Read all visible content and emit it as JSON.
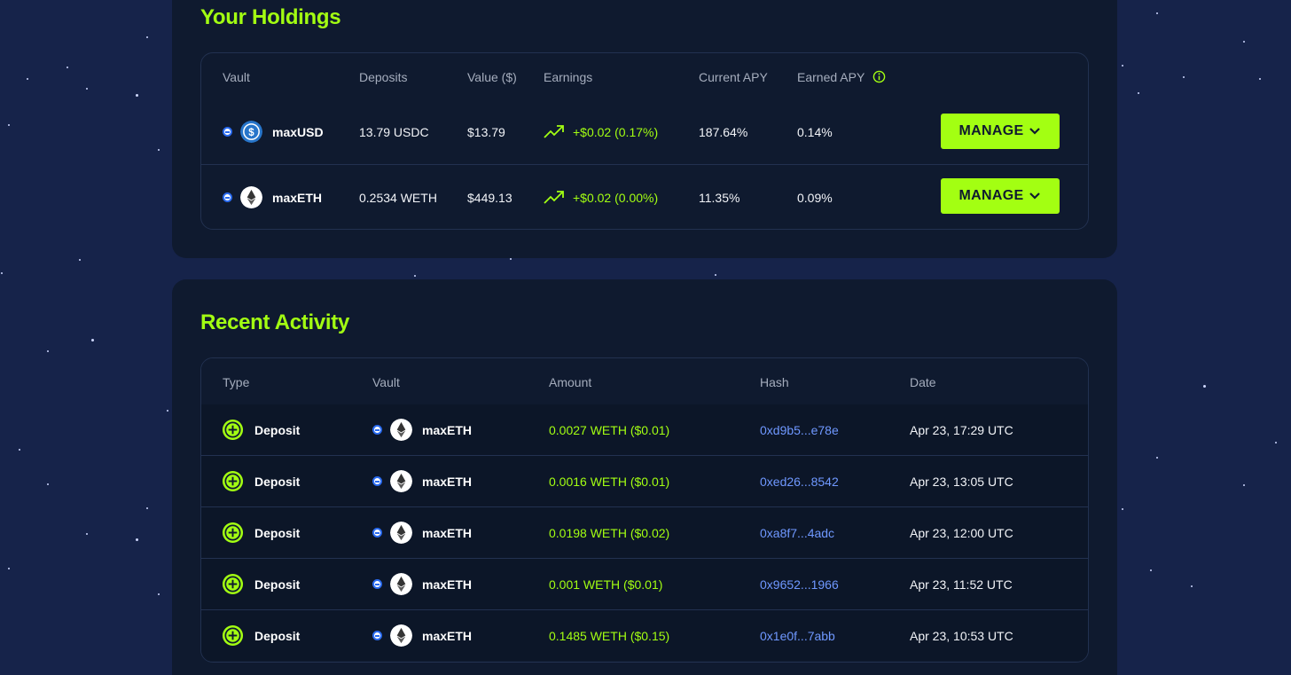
{
  "holdings": {
    "title": "Your Holdings",
    "columns": {
      "vault": "Vault",
      "deposits": "Deposits",
      "value": "Value ($)",
      "earnings": "Earnings",
      "current_apy": "Current APY",
      "earned_apy": "Earned APY"
    },
    "rows": [
      {
        "vault": "maxUSD",
        "coin_icon": "usdc-icon",
        "deposits": "13.79 USDC",
        "value": "$13.79",
        "earnings": "+$0.02 (0.17%)",
        "current_apy": "187.64%",
        "earned_apy": "0.14%",
        "action": "MANAGE"
      },
      {
        "vault": "maxETH",
        "coin_icon": "eth-icon",
        "deposits": "0.2534 WETH",
        "value": "$449.13",
        "earnings": "+$0.02 (0.00%)",
        "current_apy": "11.35%",
        "earned_apy": "0.09%",
        "action": "MANAGE"
      }
    ]
  },
  "activity": {
    "title": "Recent Activity",
    "columns": {
      "type": "Type",
      "vault": "Vault",
      "amount": "Amount",
      "hash": "Hash",
      "date": "Date"
    },
    "rows": [
      {
        "type": "Deposit",
        "vault": "maxETH",
        "amount": "0.0027 WETH ($0.01)",
        "hash": "0xd9b5...e78e",
        "date": "Apr 23, 17:29 UTC"
      },
      {
        "type": "Deposit",
        "vault": "maxETH",
        "amount": "0.0016 WETH ($0.01)",
        "hash": "0xed26...8542",
        "date": "Apr 23, 13:05 UTC"
      },
      {
        "type": "Deposit",
        "vault": "maxETH",
        "amount": "0.0198 WETH ($0.02)",
        "hash": "0xa8f7...4adc",
        "date": "Apr 23, 12:00 UTC"
      },
      {
        "type": "Deposit",
        "vault": "maxETH",
        "amount": "0.001 WETH ($0.01)",
        "hash": "0x9652...1966",
        "date": "Apr 23, 11:52 UTC"
      },
      {
        "type": "Deposit",
        "vault": "maxETH",
        "amount": "0.1485 WETH ($0.15)",
        "hash": "0x1e0f...7abb",
        "date": "Apr 23, 10:53 UTC"
      }
    ]
  },
  "colors": {
    "accent": "#a3ff12",
    "background": "#16234a",
    "panel": "#0f1a2f",
    "link": "#6f98ff"
  }
}
